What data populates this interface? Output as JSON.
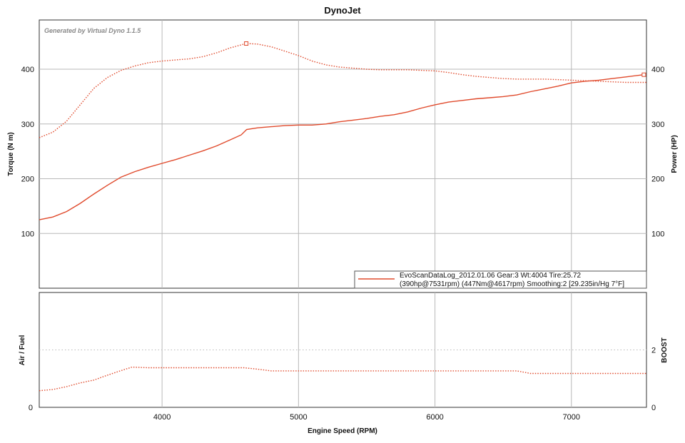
{
  "chart_data": [
    {
      "type": "line",
      "title": "DynoJet",
      "watermark": "Generated by Virtual Dyno 1.1.5",
      "xlabel": "Engine Speed (RPM)",
      "ylabel_left": "Torque (N m)",
      "ylabel_right": "Power (HP)",
      "xlim": [
        3100,
        7550
      ],
      "ylim": [
        0,
        490
      ],
      "x_ticks": [
        4000,
        5000,
        6000,
        7000
      ],
      "y_ticks_left": [
        100,
        200,
        300,
        400
      ],
      "y_ticks_right": [
        100,
        200,
        300,
        400
      ],
      "grid": true,
      "legend": {
        "placement": "bottom-right",
        "line1": "EvoScanDataLog_2012.01.06 Gear:3 Wt:4004 Tire:25.72",
        "line2": "(390hp@7531rpm) (447Nm@4617rpm) Smoothing:2 [29.235in/Hg 7°F]"
      },
      "colors": {
        "series": "#e04a2c",
        "grid": "#b8b8b8"
      },
      "series": [
        {
          "style": "dotted",
          "peak_marker": [
            4617,
            447
          ],
          "points": [
            [
              3100,
              275
            ],
            [
              3200,
              285
            ],
            [
              3300,
              305
            ],
            [
              3400,
              335
            ],
            [
              3500,
              365
            ],
            [
              3600,
              385
            ],
            [
              3700,
              398
            ],
            [
              3800,
              406
            ],
            [
              3900,
              412
            ],
            [
              4000,
              415
            ],
            [
              4100,
              417
            ],
            [
              4200,
              419
            ],
            [
              4300,
              423
            ],
            [
              4400,
              430
            ],
            [
              4500,
              439
            ],
            [
              4617,
              447
            ],
            [
              4700,
              446
            ],
            [
              4800,
              441
            ],
            [
              4900,
              433
            ],
            [
              5000,
              425
            ],
            [
              5100,
              415
            ],
            [
              5200,
              408
            ],
            [
              5300,
              404
            ],
            [
              5400,
              402
            ],
            [
              5500,
              400
            ],
            [
              5600,
              399
            ],
            [
              5700,
              399
            ],
            [
              5800,
              399
            ],
            [
              5900,
              398
            ],
            [
              6000,
              397
            ],
            [
              6100,
              394
            ],
            [
              6200,
              390
            ],
            [
              6300,
              387
            ],
            [
              6400,
              385
            ],
            [
              6500,
              383
            ],
            [
              6600,
              382
            ],
            [
              6700,
              382
            ],
            [
              6800,
              382
            ],
            [
              6900,
              381
            ],
            [
              7000,
              380
            ],
            [
              7100,
              379
            ],
            [
              7200,
              378
            ],
            [
              7300,
              377
            ],
            [
              7400,
              376
            ],
            [
              7550,
              376
            ]
          ]
        },
        {
          "style": "solid",
          "peak_marker": [
            7531,
            390
          ],
          "points": [
            [
              3100,
              125
            ],
            [
              3200,
              130
            ],
            [
              3300,
              140
            ],
            [
              3400,
              155
            ],
            [
              3500,
              172
            ],
            [
              3600,
              188
            ],
            [
              3700,
              203
            ],
            [
              3800,
              213
            ],
            [
              3900,
              221
            ],
            [
              4000,
              228
            ],
            [
              4100,
              235
            ],
            [
              4200,
              243
            ],
            [
              4300,
              251
            ],
            [
              4400,
              260
            ],
            [
              4500,
              271
            ],
            [
              4580,
              280
            ],
            [
              4620,
              290
            ],
            [
              4700,
              293
            ],
            [
              4800,
              295
            ],
            [
              4900,
              297
            ],
            [
              5000,
              298
            ],
            [
              5100,
              298
            ],
            [
              5200,
              300
            ],
            [
              5300,
              304
            ],
            [
              5400,
              307
            ],
            [
              5500,
              310
            ],
            [
              5600,
              314
            ],
            [
              5700,
              317
            ],
            [
              5800,
              322
            ],
            [
              5900,
              329
            ],
            [
              6000,
              335
            ],
            [
              6100,
              340
            ],
            [
              6200,
              343
            ],
            [
              6300,
              346
            ],
            [
              6400,
              348
            ],
            [
              6500,
              350
            ],
            [
              6600,
              353
            ],
            [
              6700,
              359
            ],
            [
              6800,
              364
            ],
            [
              6900,
              369
            ],
            [
              7000,
              375
            ],
            [
              7100,
              378
            ],
            [
              7200,
              380
            ],
            [
              7300,
              383
            ],
            [
              7400,
              386
            ],
            [
              7531,
              390
            ]
          ]
        }
      ]
    },
    {
      "type": "line",
      "xlabel": "Engine Speed (RPM)",
      "ylabel_left": "Air / Fuel",
      "ylabel_right": "BOOST",
      "xlim": [
        3100,
        7550
      ],
      "ylim": [
        0,
        4
      ],
      "x_ticks": [
        4000,
        5000,
        6000,
        7000
      ],
      "y_ticks_left": [
        0
      ],
      "y_ticks_right": [
        0,
        2
      ],
      "y_gridline": [
        2
      ],
      "grid": true,
      "colors": {
        "series": "#e04a2c"
      },
      "series": [
        {
          "style": "dotted",
          "points": [
            [
              3100,
              0.58
            ],
            [
              3200,
              0.62
            ],
            [
              3300,
              0.72
            ],
            [
              3400,
              0.85
            ],
            [
              3500,
              0.95
            ],
            [
              3600,
              1.12
            ],
            [
              3700,
              1.28
            ],
            [
              3780,
              1.4
            ],
            [
              3900,
              1.38
            ],
            [
              4000,
              1.38
            ],
            [
              4200,
              1.38
            ],
            [
              4400,
              1.38
            ],
            [
              4600,
              1.38
            ],
            [
              4700,
              1.33
            ],
            [
              4800,
              1.27
            ],
            [
              5000,
              1.27
            ],
            [
              5500,
              1.27
            ],
            [
              6000,
              1.27
            ],
            [
              6500,
              1.27
            ],
            [
              6600,
              1.27
            ],
            [
              6700,
              1.18
            ],
            [
              7000,
              1.18
            ],
            [
              7550,
              1.18
            ]
          ]
        }
      ]
    }
  ]
}
